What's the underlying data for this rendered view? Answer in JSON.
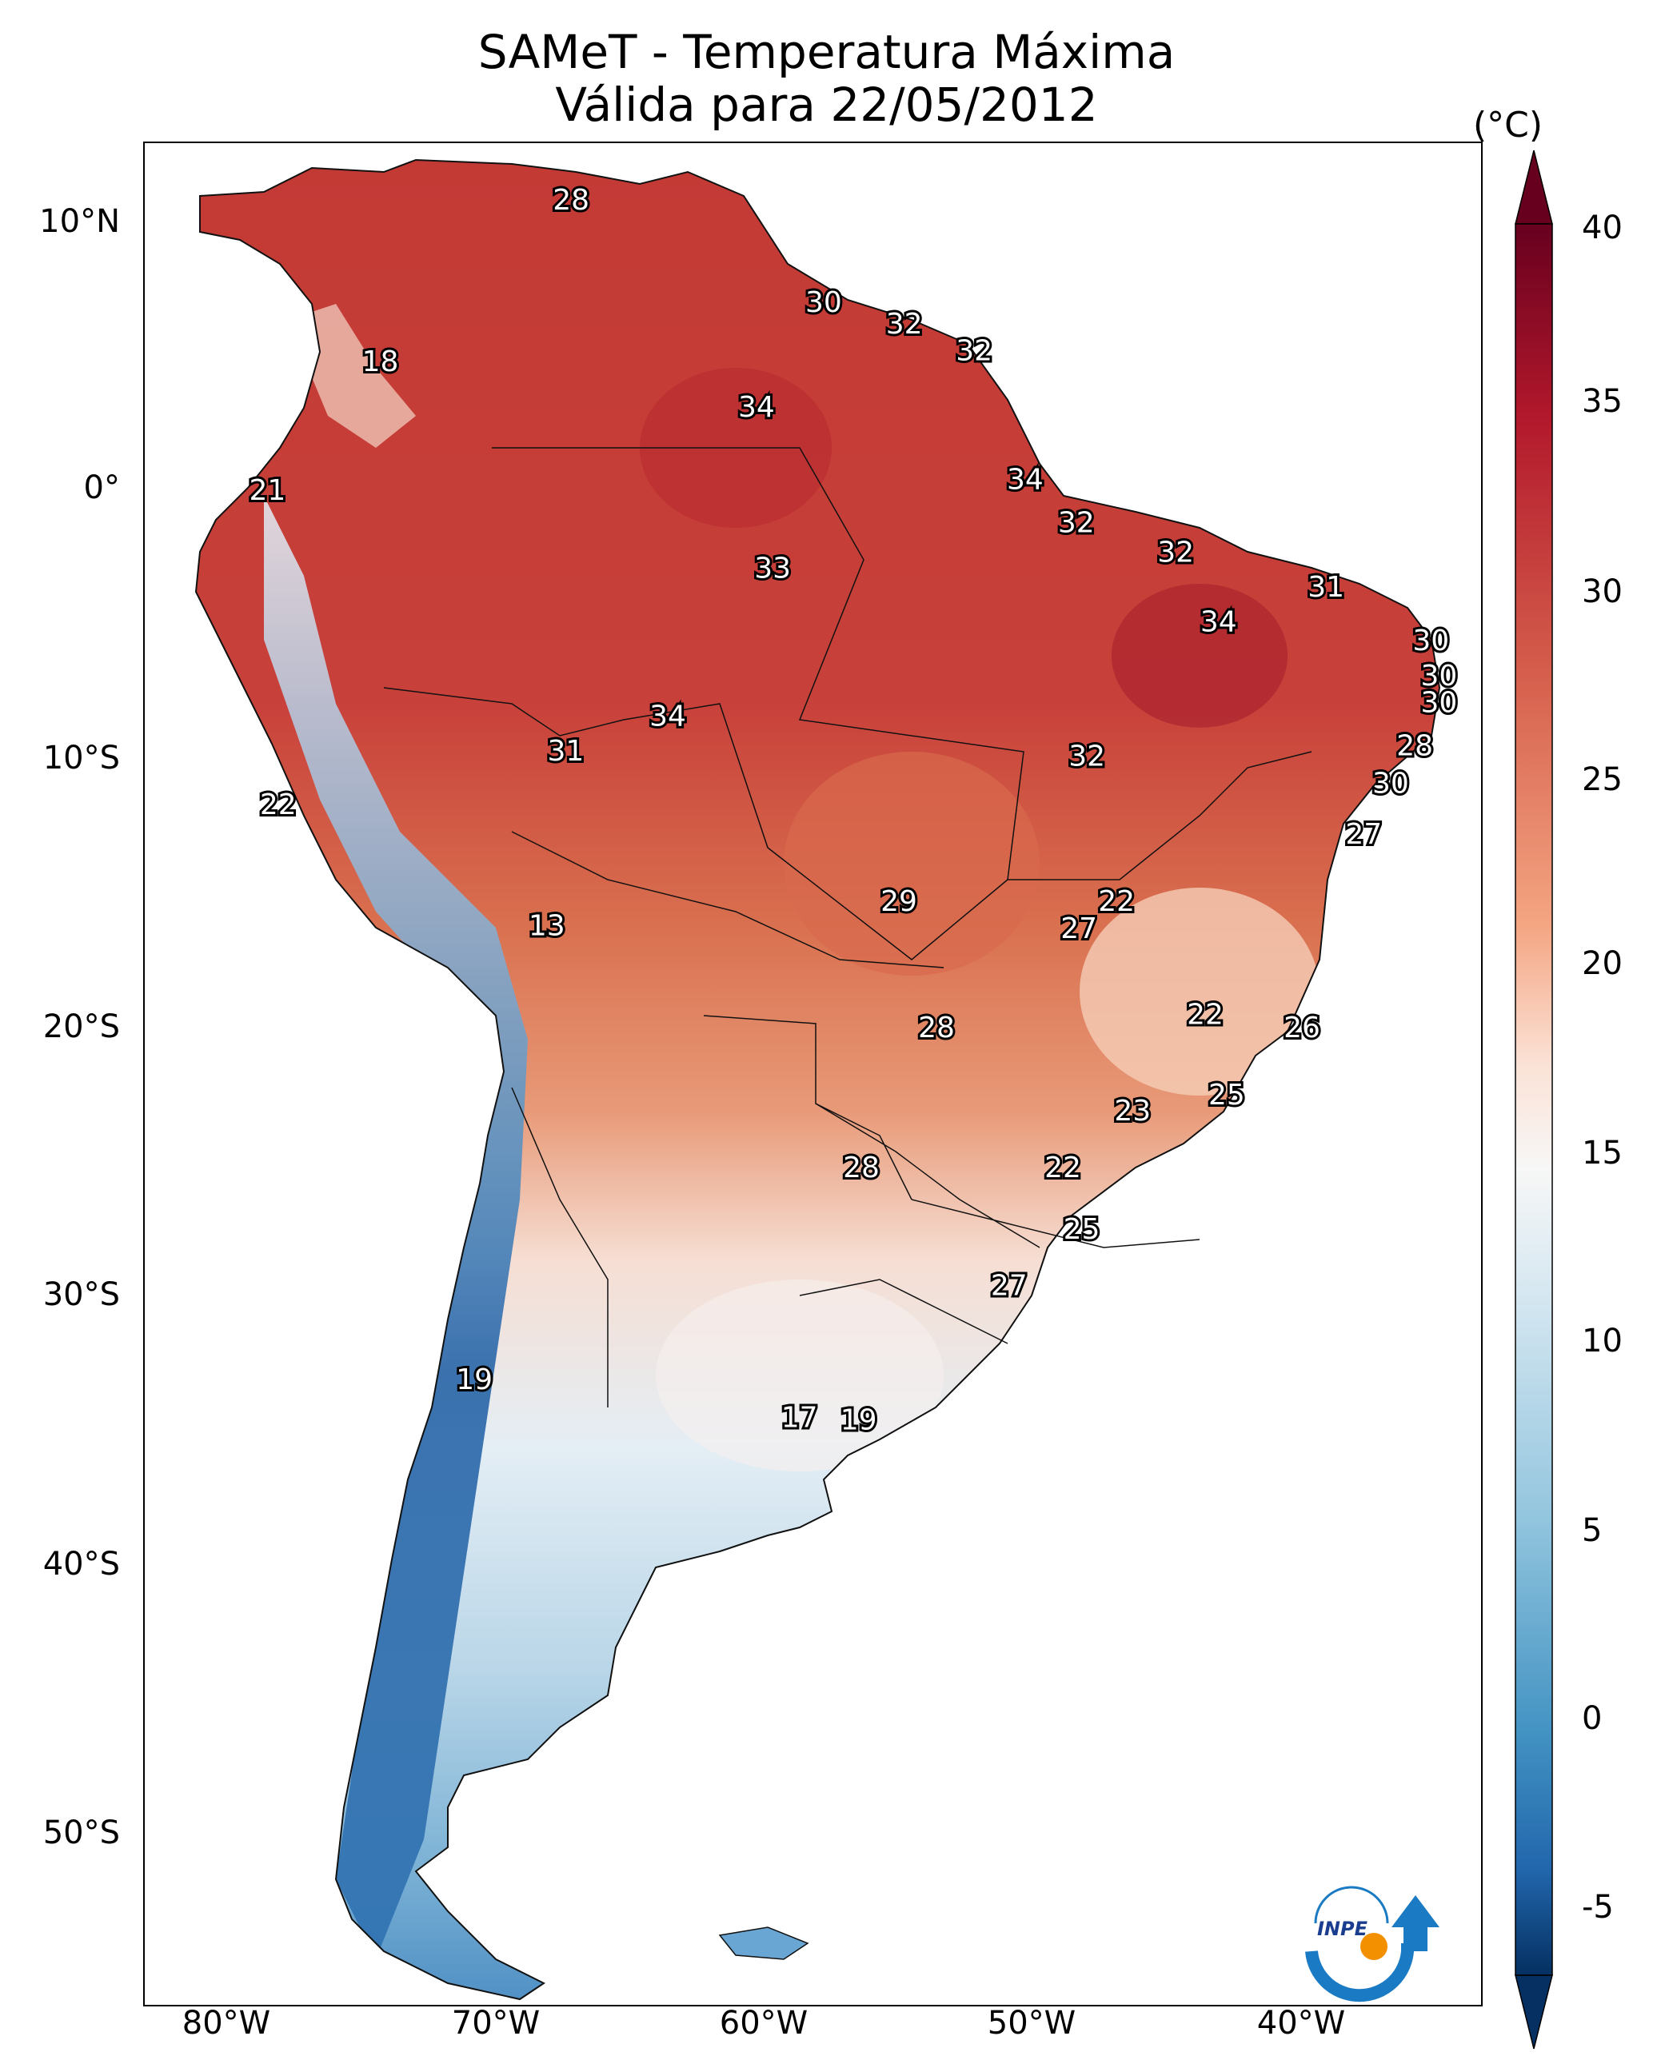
{
  "title": "SAMeT - Temperatura Máxima",
  "subtitle": "Válida para 22/05/2012",
  "colorbar": {
    "unit": "(°C)",
    "ticks": [
      "40",
      "35",
      "30",
      "25",
      "20",
      "15",
      "10",
      "5",
      "0",
      "-5"
    ],
    "range": [
      -5,
      40
    ],
    "colormap": "RdBu_r",
    "colors": {
      "cold": "#053061",
      "cool": "#4393c3",
      "neutral": "#f7f7f7",
      "warm": "#f4a582",
      "hot": "#b2182b",
      "extreme": "#67001f"
    }
  },
  "axes": {
    "lat_ticks": [
      "10°N",
      "0°",
      "10°S",
      "20°S",
      "30°S",
      "40°S",
      "50°S"
    ],
    "lon_ticks": [
      "80°W",
      "70°W",
      "60°W",
      "50°W",
      "40°W"
    ]
  },
  "contour_labels": [
    {
      "text": "28",
      "lon": -67.2,
      "lat": 10.5
    },
    {
      "text": "18",
      "lon": -74.3,
      "lat": 4.5
    },
    {
      "text": "30",
      "lon": -57.8,
      "lat": 6.7
    },
    {
      "text": "32",
      "lon": -54.8,
      "lat": 5.9
    },
    {
      "text": "32",
      "lon": -52.2,
      "lat": 4.9
    },
    {
      "text": "34",
      "lon": -60.3,
      "lat": 2.8
    },
    {
      "text": "21",
      "lon": -78.5,
      "lat": -0.3
    },
    {
      "text": "34",
      "lon": -50.3,
      "lat": 0.1
    },
    {
      "text": "32",
      "lon": -48.4,
      "lat": -1.5
    },
    {
      "text": "33",
      "lon": -59.7,
      "lat": -3.2
    },
    {
      "text": "32",
      "lon": -44.7,
      "lat": -2.6
    },
    {
      "text": "31",
      "lon": -39.1,
      "lat": -3.9
    },
    {
      "text": "34",
      "lon": -43.1,
      "lat": -5.2
    },
    {
      "text": "30",
      "lon": -35.2,
      "lat": -5.9
    },
    {
      "text": "30",
      "lon": -34.9,
      "lat": -7.2
    },
    {
      "text": "30",
      "lon": -34.9,
      "lat": -8.2
    },
    {
      "text": "34",
      "lon": -63.6,
      "lat": -8.7
    },
    {
      "text": "31",
      "lon": -67.4,
      "lat": -10.0
    },
    {
      "text": "32",
      "lon": -48.0,
      "lat": -10.2
    },
    {
      "text": "28",
      "lon": -35.8,
      "lat": -9.8
    },
    {
      "text": "30",
      "lon": -36.7,
      "lat": -11.2
    },
    {
      "text": "22",
      "lon": -78.1,
      "lat": -12.0
    },
    {
      "text": "27",
      "lon": -37.7,
      "lat": -13.1
    },
    {
      "text": "13",
      "lon": -68.1,
      "lat": -16.5
    },
    {
      "text": "29",
      "lon": -55.0,
      "lat": -15.6
    },
    {
      "text": "22",
      "lon": -46.9,
      "lat": -15.6
    },
    {
      "text": "27",
      "lon": -48.3,
      "lat": -16.6
    },
    {
      "text": "22",
      "lon": -43.6,
      "lat": -19.8
    },
    {
      "text": "26",
      "lon": -40.0,
      "lat": -20.3
    },
    {
      "text": "28",
      "lon": -53.6,
      "lat": -20.3
    },
    {
      "text": "25",
      "lon": -42.8,
      "lat": -22.8
    },
    {
      "text": "23",
      "lon": -46.3,
      "lat": -23.4
    },
    {
      "text": "28",
      "lon": -56.4,
      "lat": -25.5
    },
    {
      "text": "22",
      "lon": -48.9,
      "lat": -25.5
    },
    {
      "text": "25",
      "lon": -48.2,
      "lat": -27.8
    },
    {
      "text": "27",
      "lon": -50.9,
      "lat": -29.9
    },
    {
      "text": "19",
      "lon": -70.8,
      "lat": -33.4
    },
    {
      "text": "17",
      "lon": -58.7,
      "lat": -34.8
    },
    {
      "text": "19",
      "lon": -56.5,
      "lat": -34.9
    }
  ],
  "logo": {
    "text": "INPE",
    "colors": {
      "arc": "#1a7bc4",
      "dot": "#f39000"
    }
  }
}
